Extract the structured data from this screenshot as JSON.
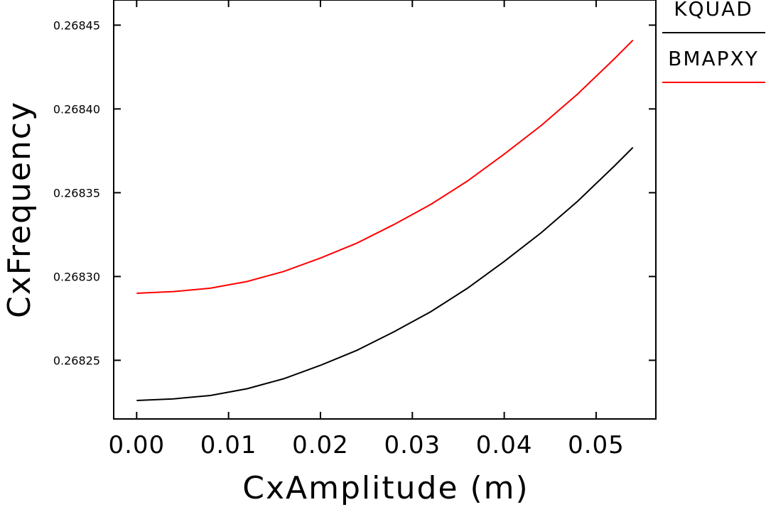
{
  "chart_data": {
    "type": "line",
    "xlabel": "CxAmplitude (m)",
    "ylabel": "CxFrequency",
    "xlim": [
      -0.0025,
      0.0565
    ],
    "ylim": [
      0.268215,
      0.268465
    ],
    "x_ticks": [
      "0.00",
      "0.01",
      "0.02",
      "0.03",
      "0.04",
      "0.05"
    ],
    "x_tick_values": [
      0.0,
      0.01,
      0.02,
      0.03,
      0.04,
      0.05
    ],
    "y_ticks": [
      "0.26825",
      "0.26830",
      "0.26835",
      "0.26840",
      "0.26845"
    ],
    "y_tick_values": [
      0.26825,
      0.2683,
      0.26835,
      0.2684,
      0.26845
    ],
    "grid": false,
    "legend_position": "top-right, outside plot",
    "series": [
      {
        "name": "KQUAD",
        "color": "#000000",
        "x": [
          0.0,
          0.004,
          0.008,
          0.012,
          0.016,
          0.02,
          0.024,
          0.028,
          0.032,
          0.036,
          0.04,
          0.044,
          0.048,
          0.052,
          0.054
        ],
        "y": [
          0.268226,
          0.268227,
          0.268229,
          0.268233,
          0.268239,
          0.268247,
          0.268256,
          0.268267,
          0.268279,
          0.268293,
          0.268309,
          0.268326,
          0.268345,
          0.268366,
          0.268377
        ]
      },
      {
        "name": "BMAPXY",
        "color": "#ff0000",
        "x": [
          0.0,
          0.004,
          0.008,
          0.012,
          0.016,
          0.02,
          0.024,
          0.028,
          0.032,
          0.036,
          0.04,
          0.044,
          0.048,
          0.052,
          0.054
        ],
        "y": [
          0.26829,
          0.268291,
          0.268293,
          0.268297,
          0.268303,
          0.268311,
          0.26832,
          0.268331,
          0.268343,
          0.268357,
          0.268373,
          0.26839,
          0.268409,
          0.26843,
          0.268441
        ]
      }
    ]
  }
}
